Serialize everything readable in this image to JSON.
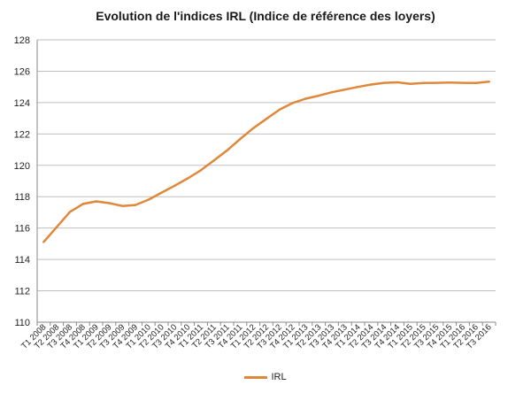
{
  "chart_data": {
    "type": "line",
    "title": "Evolution de l'indices IRL (Indice de référence des loyers)",
    "xlabel": "",
    "ylabel": "",
    "ylim": [
      110,
      128
    ],
    "yticks": [
      110,
      112,
      114,
      116,
      118,
      120,
      122,
      124,
      126,
      128
    ],
    "grid": true,
    "legend": "bottom",
    "categories": [
      "T1 2008",
      "T2 2008",
      "T3 2008",
      "T4 2008",
      "T1 2009",
      "T2 2009",
      "T3 2009",
      "T4 2009",
      "T1 2010",
      "T2 2010",
      "T3 2010",
      "T4 2010",
      "T1 2011",
      "T2 2011",
      "T3 2011",
      "T4 2011",
      "T1 2012",
      "T2 2012",
      "T3 2012",
      "T4 2012",
      "T1 2013",
      "T2 2013",
      "T3 2013",
      "T4 2013",
      "T1 2014",
      "T2 2014",
      "T3 2014",
      "T4 2014",
      "T1 2015",
      "T2 2015",
      "T3 2015",
      "T4 2015",
      "T1 2016",
      "T2 2016",
      "T3 2016"
    ],
    "series": [
      {
        "name": "IRL",
        "color": "#E0883A",
        "values": [
          115.12,
          116.07,
          117.03,
          117.54,
          117.7,
          117.59,
          117.41,
          117.47,
          117.81,
          118.26,
          118.7,
          119.17,
          119.69,
          120.31,
          120.95,
          121.68,
          122.37,
          122.96,
          123.55,
          123.97,
          124.25,
          124.44,
          124.66,
          124.83,
          125.0,
          125.15,
          125.26,
          125.29,
          125.19,
          125.25,
          125.26,
          125.28,
          125.26,
          125.25,
          125.33
        ]
      }
    ]
  }
}
